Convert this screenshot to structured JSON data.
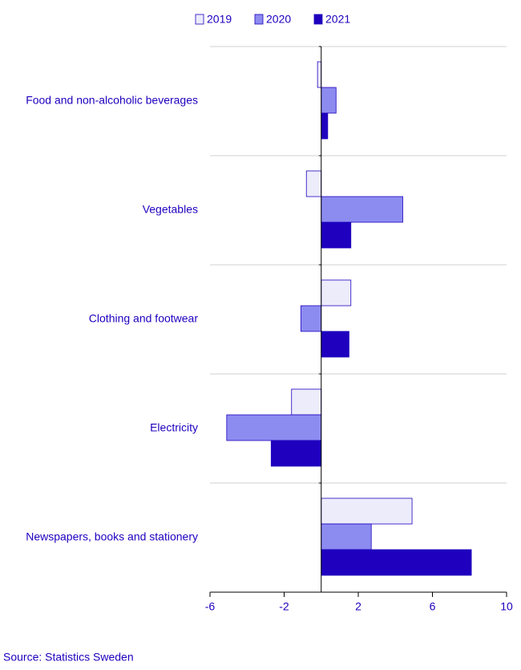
{
  "chart_data": {
    "type": "hbar",
    "categories": [
      "Food and non-alcoholic beverages",
      "Vegetables",
      "Clothing and footwear",
      "Electricity",
      "Newspapers, books and stationery"
    ],
    "series": [
      {
        "name": "2019",
        "color": "#ececfb",
        "values": [
          -0.2,
          -0.8,
          1.6,
          -1.6,
          4.9
        ]
      },
      {
        "name": "2020",
        "color": "#8c8cf0",
        "values": [
          0.8,
          4.4,
          -1.1,
          -5.1,
          2.7
        ]
      },
      {
        "name": "2021",
        "color": "#1e00be",
        "values": [
          0.35,
          1.6,
          1.5,
          -2.7,
          8.1
        ]
      }
    ],
    "xlim": [
      -6,
      10
    ],
    "xticks": [
      -6,
      -2,
      2,
      6,
      10
    ],
    "source": "Source: Statistics Sweden"
  }
}
